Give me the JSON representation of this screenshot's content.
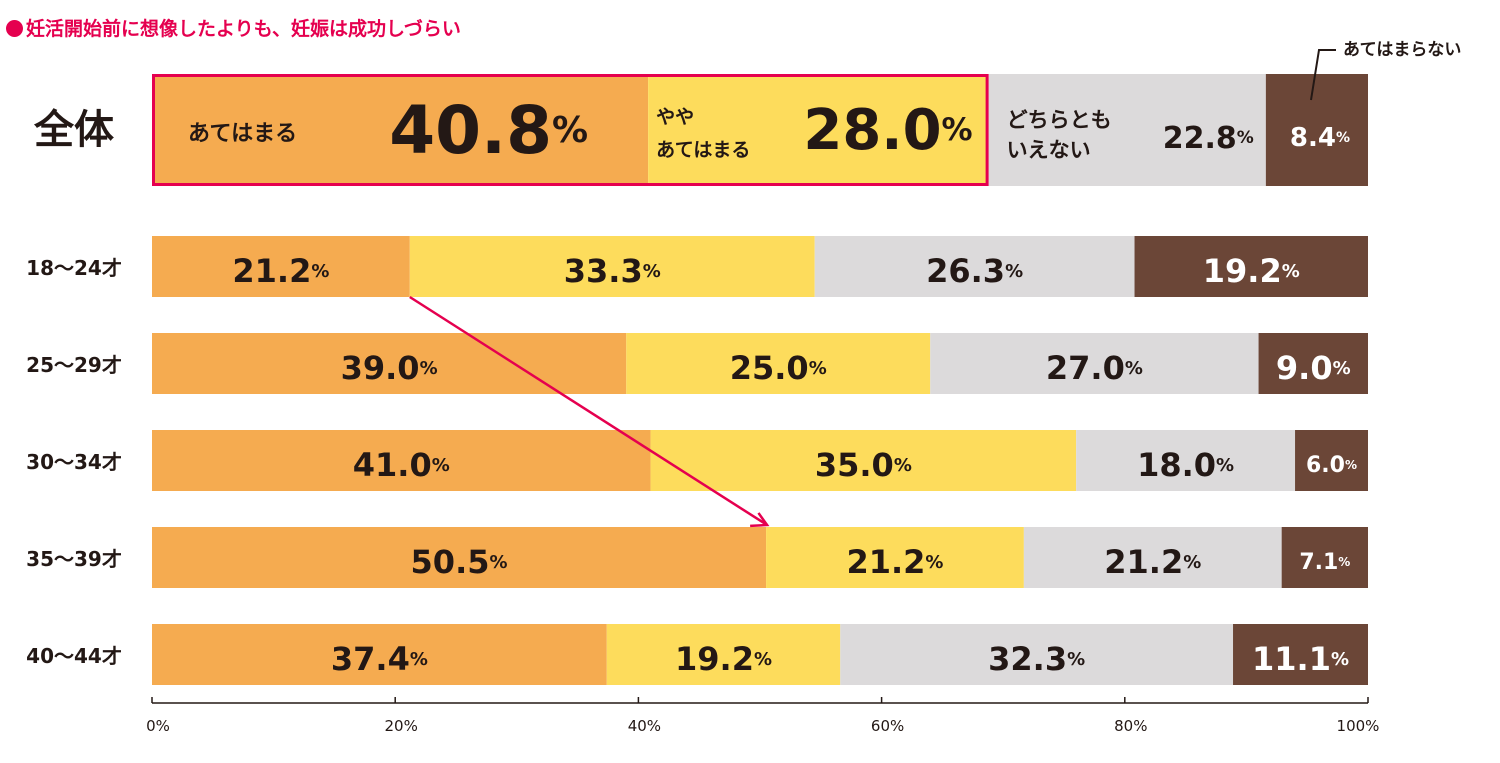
{
  "title": "妊活開始前に想像したよりも、妊娠は成功しづらい",
  "chart_data": {
    "type": "bar",
    "orientation": "horizontal",
    "stacked": true,
    "title": "妊活開始前に想像したよりも、妊娠は成功しづらい",
    "categories": [
      "全体",
      "18〜24才",
      "25〜29才",
      "30〜34才",
      "35〜39才",
      "40〜44才"
    ],
    "series": [
      {
        "name": "あてはまる",
        "color": "#f5ab50",
        "values": [
          40.8,
          21.2,
          39.0,
          41.0,
          50.5,
          37.4
        ]
      },
      {
        "name": "ややあてはまる",
        "color": "#fddc5c",
        "values": [
          28.0,
          33.3,
          25.0,
          35.0,
          21.2,
          19.2
        ]
      },
      {
        "name": "どちらともいえない",
        "color": "#dcdadb",
        "values": [
          22.8,
          26.3,
          27.0,
          18.0,
          21.2,
          32.3
        ]
      },
      {
        "name": "あてはまらない",
        "color": "#6b4637",
        "values": [
          8.4,
          19.2,
          9.0,
          6.0,
          7.1,
          11.1
        ]
      }
    ],
    "value_labels": [
      [
        "40.8",
        "28.0",
        "22.8",
        "8.4"
      ],
      [
        "21.2",
        "33.3",
        "26.3",
        "19.2"
      ],
      [
        "39.0",
        "25.0",
        "27.0",
        "9.0"
      ],
      [
        "41.0",
        "35.0",
        "18.0",
        "6.0"
      ],
      [
        "50.5",
        "21.2",
        "21.2",
        "7.1"
      ],
      [
        "37.4",
        "19.2",
        "32.3",
        "11.1"
      ]
    ],
    "percent_sign": "%",
    "inline_labels": {
      "series0": "あてはまる",
      "series1": [
        "やや",
        "あてはまる"
      ],
      "series2": [
        "どちらとも",
        "いえない"
      ],
      "series3": "あてはまらない"
    },
    "xlim": [
      0,
      100
    ],
    "xticks": [
      "0%",
      "20%",
      "40%",
      "60%",
      "80%",
      "100%"
    ],
    "highlight": {
      "row": 0,
      "series": [
        0,
        1
      ],
      "color": "#e5004f"
    },
    "annotation_arrow": {
      "from": {
        "row": 1,
        "value": 21.2
      },
      "to": {
        "row": 4,
        "value": 50.5
      },
      "color": "#e5004f"
    },
    "grid": false,
    "legend": "none"
  }
}
